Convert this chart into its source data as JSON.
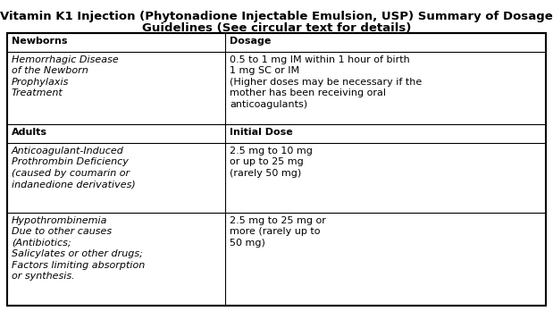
{
  "title_line1": "Vitamin K1 Injection (Phytonadione Injectable Emulsion, USP) Summary of Dosage",
  "title_line2": "Guidelines (See circular text for details)",
  "title_fontsize": 9.5,
  "bg_color": "#ffffff",
  "col_split": 0.405,
  "font_size": 8.0,
  "rows": [
    {
      "type": "header",
      "col1": "Newborns",
      "col2": "Dosage"
    },
    {
      "type": "data",
      "col1": "Hemorrhagic Disease\nof the Newborn\nProphylaxis\nTreatment",
      "col1_italic": true,
      "col2": "0.5 to 1 mg IM within 1 hour of birth\n1 mg SC or IM\n(Higher doses may be necessary if the\nmother has been receiving oral\nanticoagulants)",
      "col2_italic": false
    },
    {
      "type": "header",
      "col1": "Adults",
      "col2": "Initial Dose"
    },
    {
      "type": "data",
      "col1": "Anticoagulant-Induced\nProthrombin Deficiency\n(caused by coumarin or\nindanedione derivatives)",
      "col1_italic": true,
      "col2": "2.5 mg to 10 mg\nor up to 25 mg\n(rarely 50 mg)",
      "col2_italic": false
    },
    {
      "type": "data",
      "col1": "Hypothrombinemia\nDue to other causes\n(Antibiotics;\nSalicylates or other drugs;\nFactors limiting absorption\nor synthesis.",
      "col1_italic": true,
      "col2": "2.5 mg to 25 mg or\nmore (rarely up to\n50 mg)",
      "col2_italic": false
    }
  ]
}
